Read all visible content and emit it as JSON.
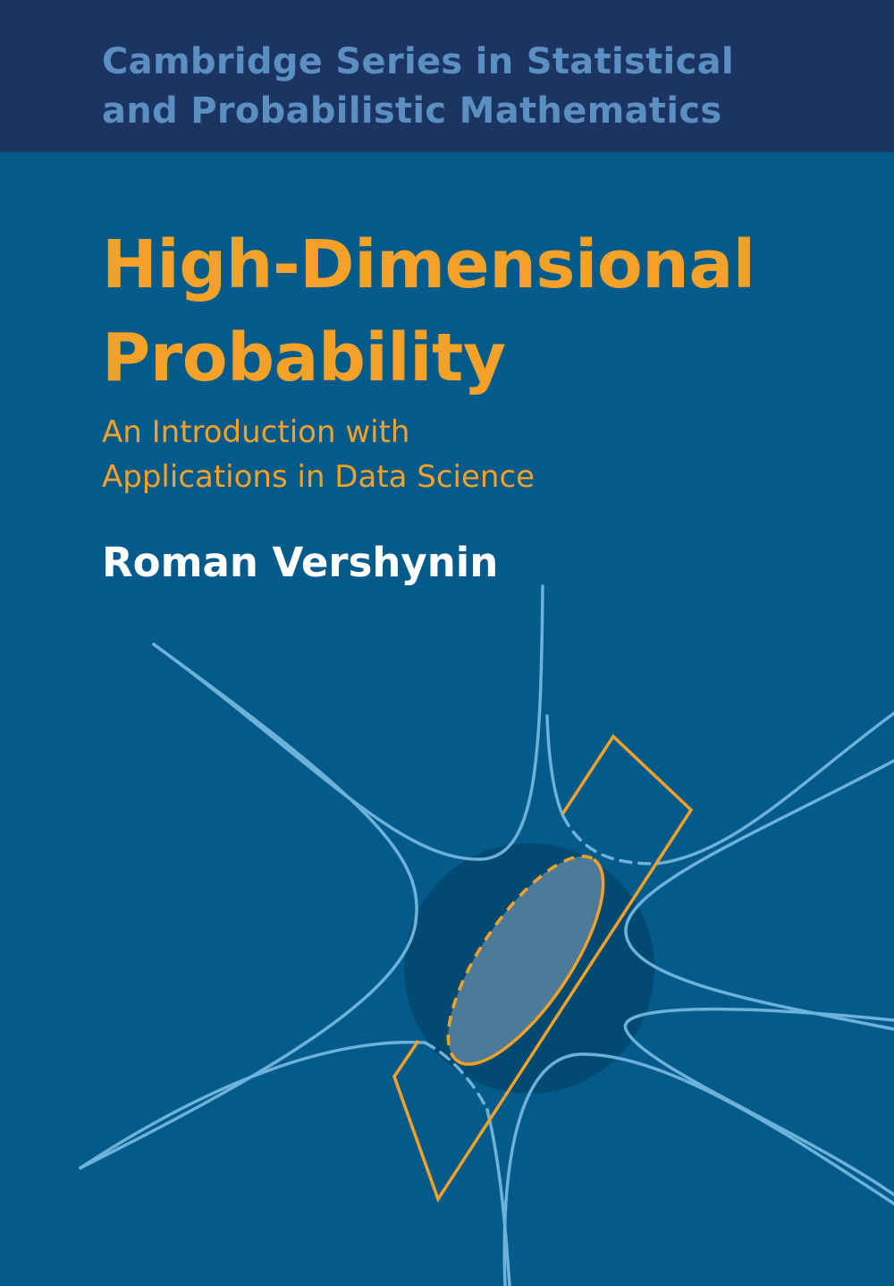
{
  "cover": {
    "series_line1": "Cambridge Series in Statistical",
    "series_line2": "and Probabilistic Mathematics",
    "title_line1": "High-Dimensional",
    "title_line2": "Probability",
    "subtitle_line1": "An Introduction with",
    "subtitle_line2": "Applications in Data Science",
    "author": "Roman Vershynin"
  },
  "colors": {
    "header_band": "#1b3461",
    "background": "#035b8b",
    "title_accent": "#f4a12a",
    "series_text": "#5b8fc2",
    "curves": "#6db2d8",
    "sphere": "#034a72"
  }
}
